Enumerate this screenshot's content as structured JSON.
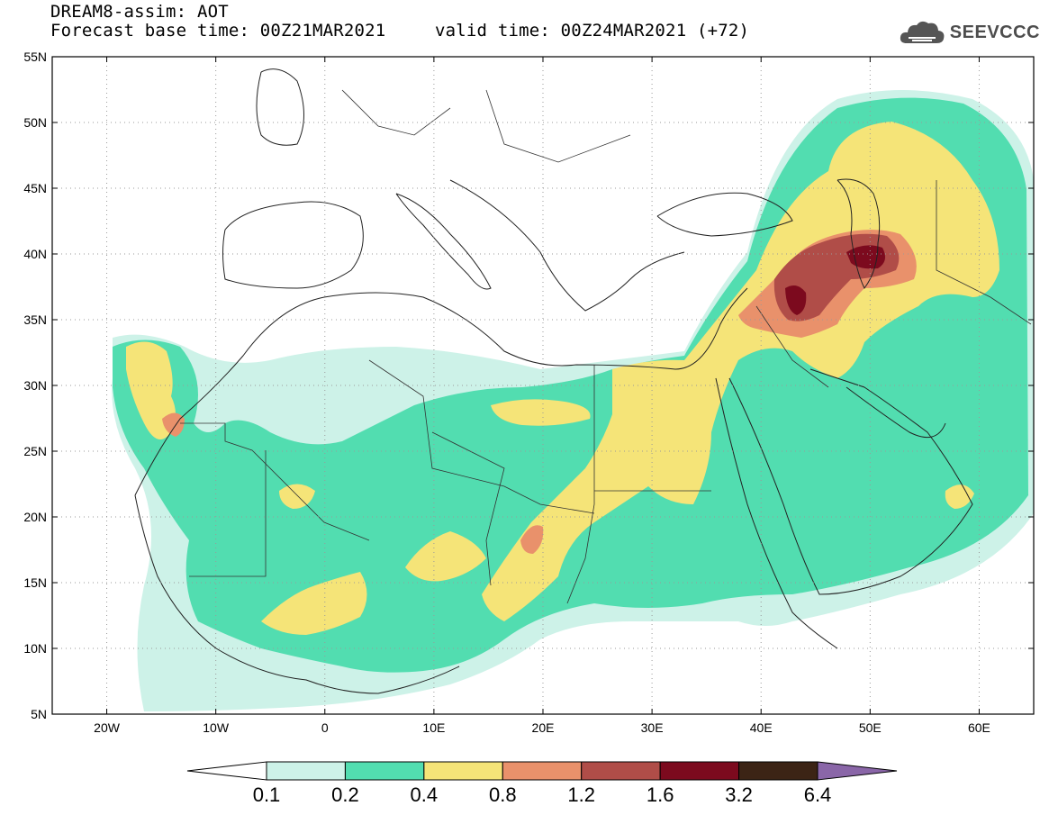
{
  "header": {
    "title": "DREAM8-assim: AOT",
    "base_time": "Forecast base time: 00Z21MAR2021",
    "valid_time": "valid time: 00Z24MAR2021 (+72)"
  },
  "logo": {
    "text": "SEEVCCC",
    "icon": "cloud-icon"
  },
  "map": {
    "lon_range": [
      -25,
      65
    ],
    "lat_range": [
      5,
      55
    ],
    "lat_ticks": [
      "5N",
      "10N",
      "15N",
      "20N",
      "25N",
      "30N",
      "35N",
      "40N",
      "45N",
      "50N",
      "55N"
    ],
    "lon_ticks": [
      "20W",
      "10W",
      "0",
      "10E",
      "20E",
      "30E",
      "40E",
      "50E",
      "60E"
    ]
  },
  "colorbar": {
    "levels": [
      "0.1",
      "0.2",
      "0.4",
      "0.8",
      "1.2",
      "1.6",
      "3.2",
      "6.4"
    ],
    "colors": [
      "#ffffff",
      "#cdf2e8",
      "#52ddb0",
      "#f5e478",
      "#e9916b",
      "#b04d48",
      "#7c0a1e",
      "#3c2415",
      "#8a66a8"
    ]
  }
}
